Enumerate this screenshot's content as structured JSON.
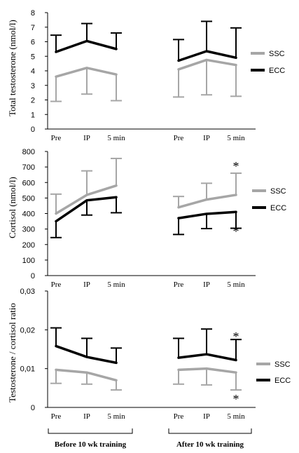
{
  "chart_data": [
    {
      "type": "line",
      "ylabel": "Total testosterone (nmol/l)",
      "ylim": [
        0,
        8
      ],
      "yticks": [
        "0",
        "1",
        "2",
        "3",
        "4",
        "5",
        "6",
        "7",
        "8"
      ],
      "categories": [
        "Pre",
        "IP",
        "5 min"
      ],
      "groups": [
        {
          "series": [
            {
              "name": "SSC",
              "color": "#a6a6a6",
              "values": [
                3.6,
                4.2,
                3.75
              ],
              "sd": [
                1.7,
                1.8,
                1.8
              ],
              "error_dir": "down"
            },
            {
              "name": "ECC",
              "color": "#000000",
              "values": [
                5.3,
                6.05,
                5.5
              ],
              "sd": [
                1.15,
                1.2,
                1.1
              ],
              "error_dir": "up"
            }
          ]
        },
        {
          "series": [
            {
              "name": "SSC",
              "color": "#a6a6a6",
              "values": [
                4.1,
                4.75,
                4.4
              ],
              "sd": [
                1.9,
                2.4,
                2.15
              ],
              "error_dir": "down"
            },
            {
              "name": "ECC",
              "color": "#000000",
              "values": [
                4.7,
                5.35,
                4.9
              ],
              "sd": [
                1.45,
                2.05,
                2.05
              ],
              "error_dir": "up"
            }
          ]
        }
      ],
      "legend": [
        "SSC",
        "ECC"
      ],
      "legend_position": "right"
    },
    {
      "type": "line",
      "ylabel": "Cortisol (nmol/l)",
      "ylim": [
        0,
        800
      ],
      "yticks": [
        "0",
        "100",
        "200",
        "300",
        "400",
        "500",
        "600",
        "700",
        "800"
      ],
      "categories": [
        "Pre",
        "IP",
        "5 min"
      ],
      "groups": [
        {
          "series": [
            {
              "name": "SSC",
              "color": "#a6a6a6",
              "values": [
                400,
                520,
                580
              ],
              "sd": [
                125,
                155,
                175
              ],
              "error_dir": "up"
            },
            {
              "name": "ECC",
              "color": "#000000",
              "values": [
                350,
                485,
                505
              ],
              "sd": [
                105,
                95,
                100
              ],
              "error_dir": "down"
            }
          ]
        },
        {
          "series": [
            {
              "name": "SSC",
              "color": "#a6a6a6",
              "values": [
                440,
                490,
                520
              ],
              "sd": [
                70,
                105,
                140
              ],
              "error_dir": "up"
            },
            {
              "name": "ECC",
              "color": "#000000",
              "values": [
                370,
                398,
                410
              ],
              "sd": [
                105,
                95,
                105
              ],
              "error_dir": "down"
            }
          ]
        }
      ],
      "annotations": [
        "*",
        "*"
      ],
      "legend": [
        "SSC",
        "ECC"
      ],
      "legend_position": "right"
    },
    {
      "type": "line",
      "ylabel": "Testosterone / cortisol ratio",
      "ylim": [
        0,
        0.03
      ],
      "yticks": [
        "0",
        "0,01",
        "0,02",
        "0,03"
      ],
      "categories": [
        "Pre",
        "IP",
        "5 min"
      ],
      "groups": [
        {
          "series": [
            {
              "name": "SSC",
              "color": "#a6a6a6",
              "values": [
                0.0097,
                0.009,
                0.007
              ],
              "sd": [
                0.0035,
                0.003,
                0.0025
              ],
              "error_dir": "down"
            },
            {
              "name": "ECC",
              "color": "#000000",
              "values": [
                0.0158,
                0.013,
                0.0115
              ],
              "sd": [
                0.0047,
                0.0048,
                0.0038
              ],
              "error_dir": "up"
            }
          ]
        },
        {
          "series": [
            {
              "name": "SSC",
              "color": "#a6a6a6",
              "values": [
                0.0097,
                0.01,
                0.009
              ],
              "sd": [
                0.0037,
                0.0042,
                0.0045
              ],
              "error_dir": "down"
            },
            {
              "name": "ECC",
              "color": "#000000",
              "values": [
                0.0128,
                0.0137,
                0.0122
              ],
              "sd": [
                0.005,
                0.0065,
                0.0053
              ],
              "error_dir": "up"
            }
          ]
        }
      ],
      "annotations": [
        "*",
        "*"
      ],
      "legend": [
        "SSC",
        "ECC"
      ],
      "legend_position": "right"
    }
  ],
  "group_labels": [
    "Before 10 wk training",
    "After 10 wk training"
  ]
}
